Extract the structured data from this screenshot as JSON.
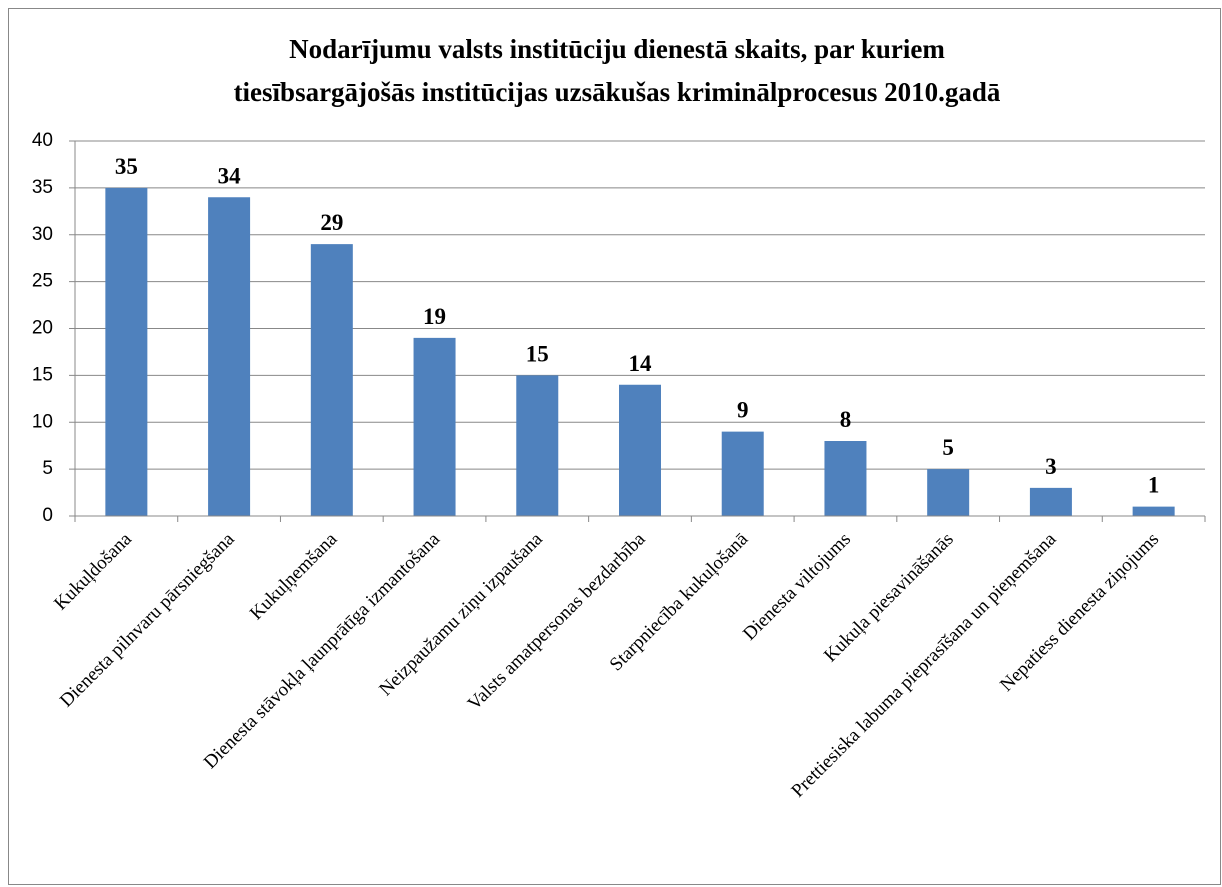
{
  "chart_data": {
    "type": "bar",
    "title": [
      "Nodarījumu valsts institūciju dienestā skaits, par kuriem",
      "tiesībsargājošās institūcijas uzsākušas kriminālprocesus 2010.gadā"
    ],
    "categories": [
      "Kukuļdošana",
      "Dienesta pilnvaru pārsniegšana",
      "Kukuļņemšana",
      "Dienesta stāvokļa ļaunprātīga izmantošana",
      "Neizpaužamu ziņu izpaušana",
      "Valsts amatpersonas bezdarbība",
      "Starpniecība kukuļošanā",
      "Dienesta viltojums",
      "Kukuļa piesavināšanās",
      "Prettiesiska labuma pieprasīšana un pieņemšana",
      "Nepatiess dienesta ziņojums"
    ],
    "values": [
      35,
      34,
      29,
      19,
      15,
      14,
      9,
      8,
      5,
      3,
      1
    ],
    "color": "#4f81bd",
    "ylim": [
      0,
      40
    ],
    "yticks": [
      0,
      5,
      10,
      15,
      20,
      25,
      30,
      35,
      40
    ],
    "grid": true
  }
}
